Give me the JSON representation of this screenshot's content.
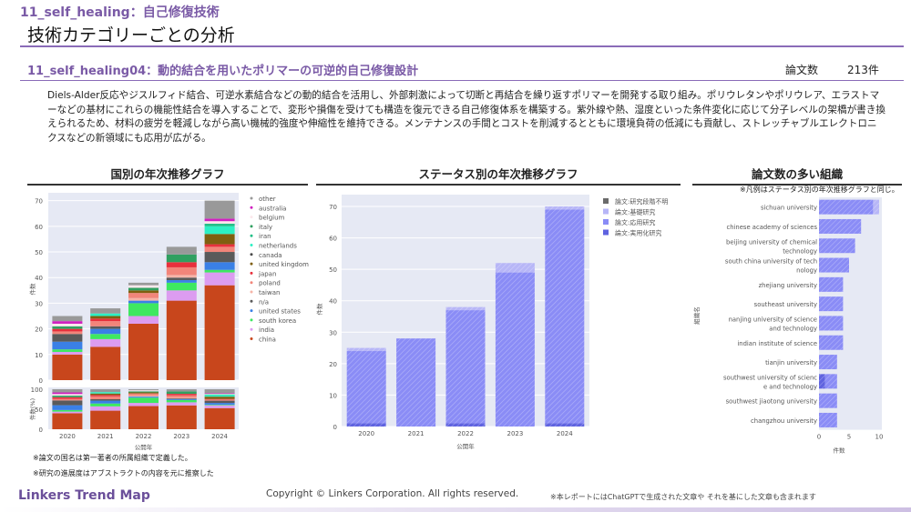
{
  "header": {
    "category": "11_self_healing：自己修復技術",
    "title": "技術カテゴリーごとの分析"
  },
  "topic": {
    "title": "11_self_healing04：動的結合を用いたポリマーの可逆的自己修復設計",
    "count_label": "論文数",
    "count_value": "213件",
    "description": "Diels-Alder反応やジスルフィド結合、可逆水素結合などの動的結合を活用し、外部刺激によって切断と再結合を繰り返すポリマーを開発する取り組み。ポリウレタンやポリウレア、エラストマーなどの基材にこれらの機能性結合を導入することで、変形や損傷を受けても構造を復元できる自己修復体系を構築する。紫外線や熱、湿度といった条件変化に応じて分子レベルの架橋が書き換えられるため、材料の疲労を軽減しながら高い機械的強度や伸縮性を維持できる。メンテナンスの手間とコストを削減するとともに環境負荷の低減にも貢献し、ストレッチャブルエレクトロニクスなどの新領域にも応用が広がる。"
  },
  "sections": {
    "country": "国別の年次推移グラフ",
    "status": "ステータス別の年次推移グラフ",
    "org": "論文数の多い組織",
    "org_note": "※凡例はステータス別の年次推移グラフと同じ。"
  },
  "notes": [
    "※論文の国名は第一著者の所属組織で定義した。",
    "※研究の進展度はアブストラクトの内容を元に推察した"
  ],
  "footer": {
    "logo": "Linkers Trend Map",
    "copyright": "Copyright © Linkers Corporation. All rights reserved.",
    "disclaimer": "※本レポートにはChatGPTで生成された文章や それを基にした文章も含まれます"
  },
  "chart_data": [
    {
      "type": "bar",
      "stacked": true,
      "categories": [
        "2020",
        "2021",
        "2022",
        "2023",
        "2024"
      ],
      "xlabel": "公開年",
      "ylabel": "件数",
      "ylabel_pct": "件数(%)",
      "ylim": [
        0,
        70
      ],
      "yticks": [
        0,
        10,
        20,
        30,
        40,
        50,
        60,
        70
      ],
      "pct_ticks": [
        0,
        50,
        100
      ],
      "legend": "right",
      "series": [
        {
          "name": "china",
          "color": "#c8461c",
          "values": [
            10,
            13,
            22,
            31,
            37
          ]
        },
        {
          "name": "india",
          "color": "#dc9cf0",
          "values": [
            1,
            3,
            3,
            4,
            5
          ]
        },
        {
          "name": "south korea",
          "color": "#3ee860",
          "values": [
            1,
            2,
            5,
            3,
            1
          ]
        },
        {
          "name": "united states",
          "color": "#3a80e6",
          "values": [
            3,
            2,
            1,
            1,
            3
          ]
        },
        {
          "name": "n/a",
          "color": "#5a5a5a",
          "values": [
            3,
            1,
            0,
            1,
            4
          ]
        },
        {
          "name": "taiwan",
          "color": "#f6b4a8",
          "values": [
            0,
            0,
            1,
            1,
            0
          ]
        },
        {
          "name": "poland",
          "color": "#f2857a",
          "values": [
            1,
            2,
            2,
            3,
            2
          ]
        },
        {
          "name": "japan",
          "color": "#e8303c",
          "values": [
            1,
            1,
            0,
            2,
            1
          ]
        },
        {
          "name": "united kingdom",
          "color": "#7f5f10",
          "values": [
            0,
            1,
            1,
            0,
            4
          ]
        },
        {
          "name": "canada",
          "color": "#4a4a4a",
          "values": [
            0,
            0,
            0,
            0,
            0
          ]
        },
        {
          "name": "netherlands",
          "color": "#2cf0c4",
          "values": [
            0,
            1,
            0,
            0,
            3
          ]
        },
        {
          "name": "iran",
          "color": "#20c088",
          "values": [
            0,
            0,
            0,
            0,
            1
          ]
        },
        {
          "name": "italy",
          "color": "#30a060",
          "values": [
            1,
            0,
            1,
            3,
            0
          ]
        },
        {
          "name": "belgium",
          "color": "#fbe8ec",
          "values": [
            1,
            0,
            1,
            0,
            1
          ]
        },
        {
          "name": "australia",
          "color": "#d020c0",
          "values": [
            1,
            0,
            0,
            0,
            1
          ]
        },
        {
          "name": "other",
          "color": "#999999",
          "values": [
            2,
            2,
            1,
            3,
            7
          ]
        }
      ]
    },
    {
      "type": "bar",
      "stacked": true,
      "categories": [
        "2020",
        "2021",
        "2022",
        "2023",
        "2024"
      ],
      "xlabel": "公開年",
      "ylabel": "件数",
      "ylim": [
        0,
        70
      ],
      "yticks": [
        0,
        10,
        20,
        30,
        40,
        50,
        60,
        70
      ],
      "legend": "top-right",
      "series": [
        {
          "name": "論文:実用化研究",
          "color": "#5f63e0",
          "values": [
            1,
            0,
            1,
            0,
            1
          ]
        },
        {
          "name": "論文:応用研究",
          "color": "#8a8cf6",
          "values": [
            23,
            28,
            36,
            49,
            68
          ]
        },
        {
          "name": "論文:基礎研究",
          "color": "#b7b6f7",
          "values": [
            1,
            0,
            1,
            3,
            1
          ]
        },
        {
          "name": "論文:研究段階不明",
          "color": "#6b6b6b",
          "values": [
            0,
            0,
            0,
            0,
            0
          ]
        }
      ]
    },
    {
      "type": "bar",
      "orientation": "horizontal",
      "stacked": true,
      "xlabel": "件数",
      "ylabel": "組織名",
      "xlim": [
        0,
        10
      ],
      "xticks": [
        0,
        5,
        10
      ],
      "categories": [
        "sichuan university",
        "chinese academy of sciences",
        "beijing university of chemical technology",
        "south china university of technology",
        "zhejiang university",
        "southeast university",
        "nanjing university of science and technology",
        "indian institute of science",
        "tianjin university",
        "southwest university of science and technology",
        "southwest jiaotong university",
        "changzhou university"
      ],
      "labels": [
        [
          "sichuan university"
        ],
        [
          "chinese academy of sciences"
        ],
        [
          "beijing university of chemical",
          "technology"
        ],
        [
          "south china university of tech",
          "nology"
        ],
        [
          "zhejiang university"
        ],
        [
          "southeast university"
        ],
        [
          "nanjing university of science",
          "and technology"
        ],
        [
          "indian institute of science"
        ],
        [
          "tianjin university"
        ],
        [
          "southwest university of scienc",
          "e and technology"
        ],
        [
          "southwest jiaotong university"
        ],
        [
          "changzhou university"
        ]
      ],
      "series": [
        {
          "name": "論文:実用化研究",
          "color": "#5f63e0",
          "values": [
            0,
            0,
            0,
            0,
            0,
            0,
            0,
            0,
            0,
            1,
            0,
            0
          ]
        },
        {
          "name": "論文:応用研究",
          "color": "#8a8cf6",
          "values": [
            9,
            7,
            6,
            5,
            4,
            4,
            4,
            4,
            3,
            2,
            3,
            3
          ]
        },
        {
          "name": "論文:基礎研究",
          "color": "#b7b6f7",
          "values": [
            1,
            0,
            0,
            0,
            0,
            0,
            0,
            0,
            0,
            0,
            0,
            0
          ]
        }
      ]
    }
  ]
}
